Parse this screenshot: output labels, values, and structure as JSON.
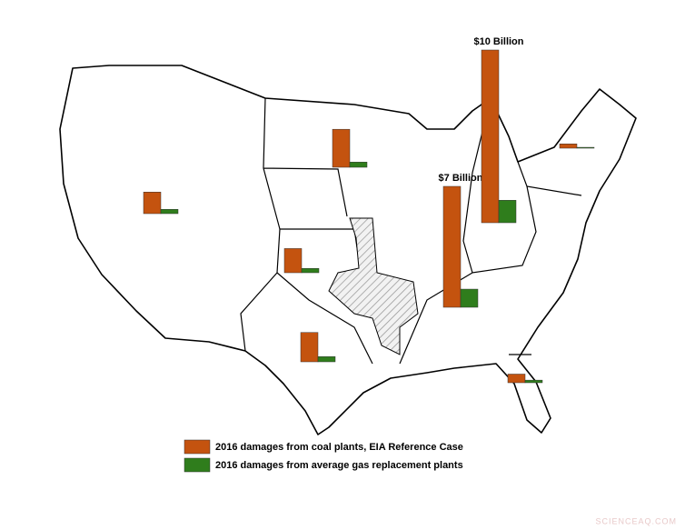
{
  "chart_data": {
    "type": "bar",
    "categories": [
      null,
      null,
      null,
      null,
      null,
      null,
      null,
      null
    ],
    "series": [
      {
        "name": "2016 damages from coal plants, EIA Reference Case",
        "color": "#c4530f",
        "values": [
          1.25,
          2.2,
          1.4,
          1.7,
          7,
          10,
          0.25,
          0.5
        ],
        "value_labels": [
          null,
          null,
          null,
          null,
          "$7 Billion",
          "$10 Billion",
          null,
          null
        ]
      },
      {
        "name": "2016 damages from average gas replacement plants",
        "color": "#2f7d1c",
        "values": [
          0.25,
          0.3,
          0.25,
          0.3,
          1.05,
          1.3,
          0.05,
          0.15
        ]
      }
    ],
    "watermark": "SCIENCEAQ.COM"
  }
}
